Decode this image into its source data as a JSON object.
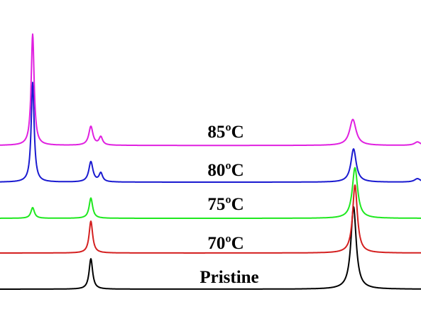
{
  "chart_data": {
    "type": "line",
    "title": "",
    "xlabel": "",
    "ylabel": "",
    "xlim": [
      0,
      593
    ],
    "ylim": [
      0,
      1
    ],
    "grid": false,
    "legend": "none",
    "series": [
      {
        "name": "Pristine",
        "color": "#000000",
        "baseline": 0,
        "peaks": [
          {
            "x": 128,
            "height": 0.105,
            "width": 3.0
          },
          {
            "x": 498,
            "height": 0.285,
            "width": 4.5
          }
        ]
      },
      {
        "name": "70ºC",
        "color": "#d42020",
        "baseline": 0.125,
        "peaks": [
          {
            "x": 128,
            "height": 0.11,
            "width": 3.0
          },
          {
            "x": 500,
            "height": 0.235,
            "width": 4.0
          }
        ]
      },
      {
        "name": "75ºC",
        "color": "#1fe81f",
        "baseline": 0.245,
        "peaks": [
          {
            "x": 46,
            "height": 0.037,
            "width": 3.0
          },
          {
            "x": 128,
            "height": 0.07,
            "width": 3.0
          },
          {
            "x": 500,
            "height": 0.175,
            "width": 4.5
          }
        ]
      },
      {
        "name": "80ºC",
        "color": "#1a1ad0",
        "baseline": 0.37,
        "peaks": [
          {
            "x": 46,
            "height": 0.345,
            "width": 2.5
          },
          {
            "x": 128,
            "height": 0.07,
            "width": 3.5
          },
          {
            "x": 142,
            "height": 0.03,
            "width": 3.0
          },
          {
            "x": 498,
            "height": 0.115,
            "width": 4.5
          },
          {
            "x": 588,
            "height": 0.012,
            "width": 5.0
          }
        ]
      },
      {
        "name": "85ºC",
        "color": "#e020e0",
        "baseline": 0.497,
        "peaks": [
          {
            "x": 46,
            "height": 0.385,
            "width": 2.5
          },
          {
            "x": 128,
            "height": 0.065,
            "width": 3.5
          },
          {
            "x": 142,
            "height": 0.028,
            "width": 3.0
          },
          {
            "x": 497,
            "height": 0.09,
            "width": 5.5
          },
          {
            "x": 588,
            "height": 0.012,
            "width": 5.0
          }
        ]
      }
    ],
    "labels": [
      "85ºC",
      "80ºC",
      "75ºC",
      "70ºC",
      "Pristine"
    ]
  }
}
